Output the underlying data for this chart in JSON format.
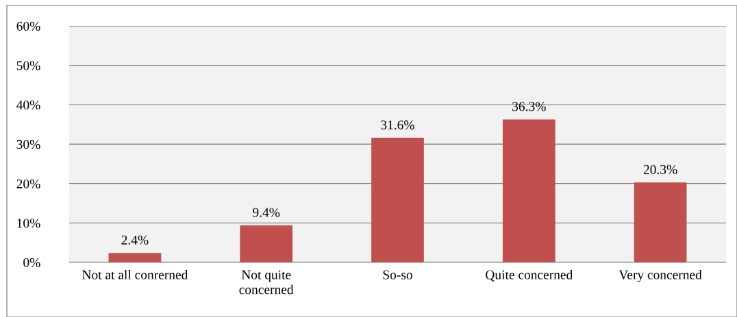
{
  "chart_data": {
    "type": "bar",
    "categories": [
      "Not at all conrerned",
      "Not quite\nconcerned",
      "So-so",
      "Quite concerned",
      "Very concerned"
    ],
    "values": [
      2.4,
      9.4,
      31.6,
      36.3,
      20.3
    ],
    "color": "#c0504d",
    "ylim": [
      0,
      60
    ],
    "yticks": [
      {
        "value": 0,
        "label": "0%"
      },
      {
        "value": 10,
        "label": "10%"
      },
      {
        "value": 20,
        "label": "20%"
      },
      {
        "value": 30,
        "label": "30%"
      },
      {
        "value": 40,
        "label": "40%"
      },
      {
        "value": 50,
        "label": "50%"
      },
      {
        "value": 60,
        "label": "60%"
      }
    ],
    "grid": "y",
    "data_labels": true,
    "value_labels": [
      "2.4%",
      "9.4%",
      "31.6%",
      "36.3%",
      "20.3%"
    ]
  }
}
